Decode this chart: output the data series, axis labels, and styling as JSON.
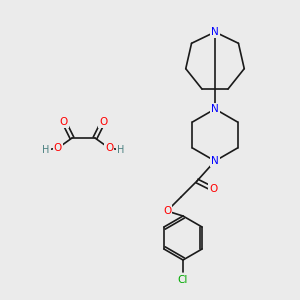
{
  "background_color": "#ebebeb",
  "atom_colors": {
    "N": "#0000ff",
    "O": "#ff0000",
    "Cl": "#00aa00",
    "C": "#1a1a1a",
    "H": "#4a8080"
  },
  "bond_color": "#1a1a1a",
  "bond_width": 1.2,
  "font_size": 7.5
}
